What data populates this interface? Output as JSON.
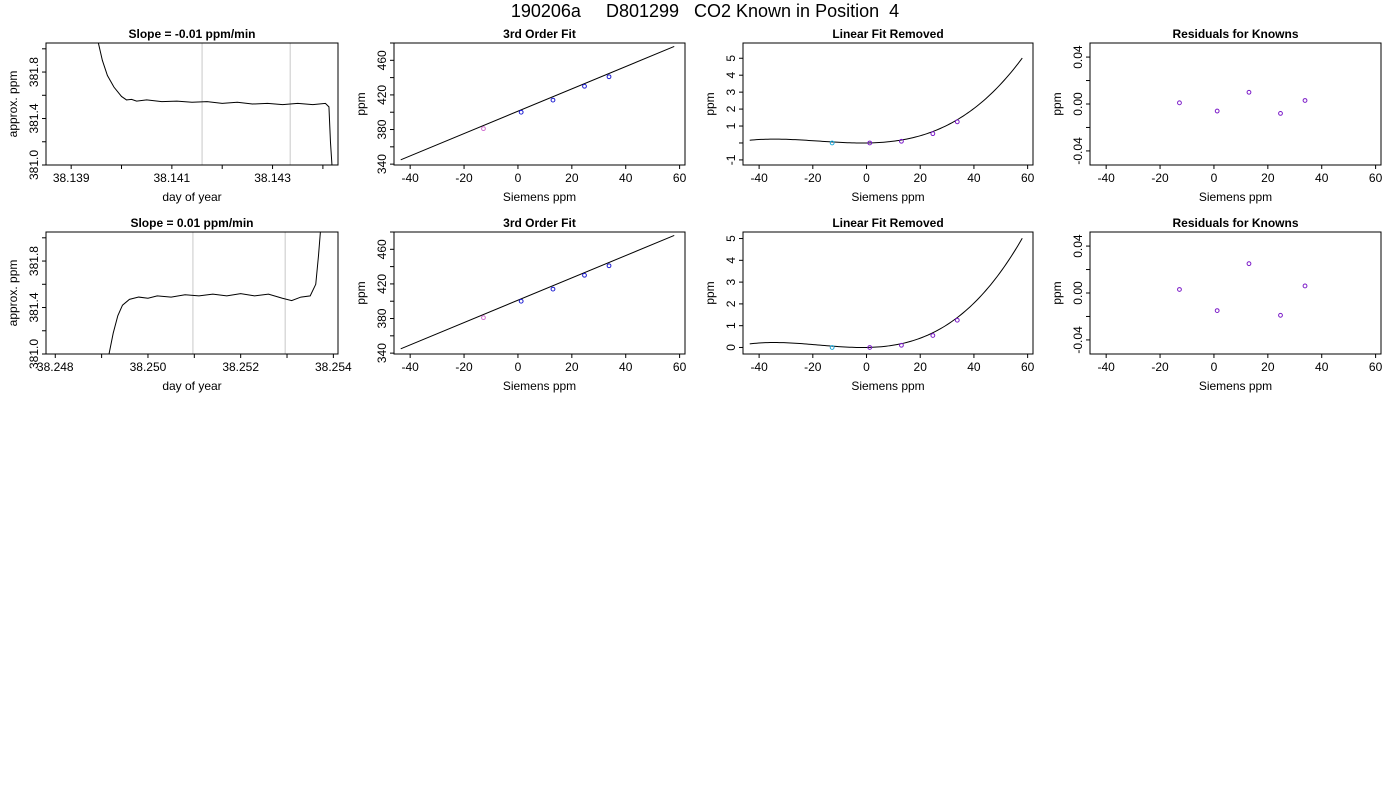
{
  "page": {
    "title": "190206a     D801299   CO2 Known in Position  4"
  },
  "chart_data": [
    {
      "id": "ts-row1",
      "type": "line",
      "title": "Slope =  -0.01  ppm/min",
      "xlabel": "day of year",
      "ylabel": "approx. ppm",
      "xlim": [
        38.1385,
        38.1443
      ],
      "ylim": [
        381.0,
        382.05
      ],
      "xticks": [
        38.139,
        38.14,
        38.141,
        38.142,
        38.143,
        38.144
      ],
      "xtick_labels": [
        "38.139",
        "",
        "38.141",
        "",
        "38.143",
        ""
      ],
      "yticks": [
        381.0,
        381.2,
        381.4,
        381.6,
        381.8,
        382.0
      ],
      "ytick_labels": [
        "381.0",
        "",
        "381.4",
        "",
        "381.8",
        ""
      ],
      "vlines": [
        38.1416,
        38.14335
      ],
      "series": [
        {
          "x": [
            38.13954,
            38.13962,
            38.13972,
            38.13985,
            38.14,
            38.1401,
            38.1402,
            38.1403,
            38.1405,
            38.1408,
            38.1411,
            38.1414,
            38.1417,
            38.142,
            38.1423,
            38.1426,
            38.1429,
            38.1432,
            38.1435,
            38.1438,
            38.14405,
            38.14412,
            38.14415,
            38.14418
          ],
          "y": [
            382.05,
            381.9,
            381.77,
            381.67,
            381.59,
            381.56,
            381.565,
            381.55,
            381.56,
            381.545,
            381.55,
            381.54,
            381.545,
            381.53,
            381.54,
            381.525,
            381.53,
            381.52,
            381.53,
            381.52,
            381.53,
            381.5,
            381.2,
            381.0
          ]
        }
      ]
    },
    {
      "id": "fit-row1",
      "type": "scatter",
      "title": "3rd Order Fit",
      "xlabel": "Siemens ppm",
      "ylabel": "ppm",
      "xlim": [
        -46,
        62
      ],
      "ylim": [
        339,
        480
      ],
      "xticks": [
        -40,
        -20,
        0,
        20,
        40,
        60
      ],
      "yticks": [
        340,
        360,
        380,
        400,
        420,
        440,
        460,
        480
      ],
      "ytick_labels": [
        "340",
        "",
        "380",
        "",
        "420",
        "",
        "460",
        ""
      ],
      "points": [
        {
          "x": -12.8,
          "y": 381
        },
        {
          "x": 1.2,
          "y": 400
        },
        {
          "x": 13.0,
          "y": 414
        },
        {
          "x": 24.7,
          "y": 430
        },
        {
          "x": 33.8,
          "y": 441
        }
      ],
      "point_colors": [
        "#d070d0",
        "#1a1ad0",
        "#1a1ad0",
        "#1a1ad0",
        "#1a1ad0"
      ],
      "curve": {
        "type": "linear",
        "x": [
          -43.5,
          58
        ],
        "y": [
          345,
          476
        ]
      }
    },
    {
      "id": "lin-row1",
      "type": "scatter",
      "title": "Linear Fit Removed",
      "xlabel": "Siemens ppm",
      "ylabel": "ppm",
      "xlim": [
        -46,
        62
      ],
      "ylim": [
        -1.3,
        5.9
      ],
      "xticks": [
        -40,
        -20,
        0,
        20,
        40,
        60
      ],
      "yticks": [
        -1,
        0,
        1,
        2,
        3,
        4,
        5
      ],
      "ytick_labels": [
        "-1",
        "",
        "1",
        "2",
        "3",
        "4",
        "5"
      ],
      "points": [
        {
          "x": -12.8,
          "y": 0.0
        },
        {
          "x": 1.2,
          "y": 0.0
        },
        {
          "x": 13.0,
          "y": 0.1
        },
        {
          "x": 24.7,
          "y": 0.55
        },
        {
          "x": 33.8,
          "y": 1.25
        }
      ],
      "point_colors": [
        "#18a6d8",
        "#7a18c8",
        "#7a18c8",
        "#7a18c8",
        "#7a18c8"
      ],
      "curve": {
        "type": "cubic",
        "coef": [
          0.0,
          0.0021,
          0.0007,
          1.3e-05
        ],
        "x_range": [
          -43.5,
          58
        ]
      }
    },
    {
      "id": "res-row1",
      "type": "scatter",
      "title": "Residuals for Knowns",
      "xlabel": "Siemens ppm",
      "ylabel": "ppm",
      "xlim": [
        -46,
        62
      ],
      "ylim": [
        -0.052,
        0.052
      ],
      "xticks": [
        -40,
        -20,
        0,
        20,
        40,
        60
      ],
      "yticks": [
        -0.04,
        -0.02,
        0.0,
        0.02,
        0.04
      ],
      "ytick_labels": [
        "-0.04",
        "",
        "0.00",
        "",
        "0.04"
      ],
      "points": [
        {
          "x": -12.8,
          "y": 0.001
        },
        {
          "x": 1.2,
          "y": -0.006
        },
        {
          "x": 13.0,
          "y": 0.01
        },
        {
          "x": 24.7,
          "y": -0.008
        },
        {
          "x": 33.8,
          "y": 0.003
        }
      ],
      "point_colors": [
        "#7a18c8",
        "#7a18c8",
        "#7a18c8",
        "#7a18c8",
        "#7a18c8"
      ]
    },
    {
      "id": "ts-row2",
      "type": "line",
      "title": "Slope =  0.01  ppm/min",
      "xlabel": "day of year",
      "ylabel": "approx. ppm",
      "xlim": [
        38.2478,
        38.2541
      ],
      "ylim": [
        381.0,
        382.05
      ],
      "xticks": [
        38.248,
        38.249,
        38.25,
        38.251,
        38.252,
        38.253,
        38.254
      ],
      "xtick_labels": [
        "38.248",
        "",
        "38.250",
        "",
        "38.252",
        "",
        "38.254"
      ],
      "yticks": [
        381.0,
        381.2,
        381.4,
        381.6,
        381.8,
        382.0
      ],
      "ytick_labels": [
        "381.0",
        "",
        "381.4",
        "",
        "381.8",
        ""
      ],
      "vlines": [
        38.25097,
        38.25296
      ],
      "series": [
        {
          "x": [
            38.24916,
            38.24925,
            38.24935,
            38.24945,
            38.2496,
            38.2498,
            38.25,
            38.2502,
            38.2505,
            38.2508,
            38.2511,
            38.2514,
            38.2517,
            38.252,
            38.2523,
            38.2526,
            38.2529,
            38.2531,
            38.2533,
            38.2535,
            38.25362,
            38.25368,
            38.25372
          ],
          "y": [
            381.0,
            381.18,
            381.33,
            381.42,
            381.47,
            381.49,
            381.48,
            381.5,
            381.49,
            381.51,
            381.5,
            381.515,
            381.5,
            381.52,
            381.5,
            381.515,
            381.48,
            381.46,
            381.49,
            381.5,
            381.6,
            381.85,
            382.05
          ]
        }
      ]
    },
    {
      "id": "fit-row2",
      "type": "scatter",
      "title": "3rd Order Fit",
      "xlabel": "Siemens ppm",
      "ylabel": "ppm",
      "xlim": [
        -46,
        62
      ],
      "ylim": [
        339,
        480
      ],
      "xticks": [
        -40,
        -20,
        0,
        20,
        40,
        60
      ],
      "yticks": [
        340,
        360,
        380,
        400,
        420,
        440,
        460,
        480
      ],
      "ytick_labels": [
        "340",
        "",
        "380",
        "",
        "420",
        "",
        "460",
        ""
      ],
      "points": [
        {
          "x": -12.8,
          "y": 381
        },
        {
          "x": 1.2,
          "y": 400
        },
        {
          "x": 13.0,
          "y": 414
        },
        {
          "x": 24.7,
          "y": 430
        },
        {
          "x": 33.8,
          "y": 441
        }
      ],
      "point_colors": [
        "#d070d0",
        "#1a1ad0",
        "#1a1ad0",
        "#1a1ad0",
        "#1a1ad0"
      ],
      "curve": {
        "type": "linear",
        "x": [
          -43.5,
          58
        ],
        "y": [
          345,
          476
        ]
      }
    },
    {
      "id": "lin-row2",
      "type": "scatter",
      "title": "Linear Fit Removed",
      "xlabel": "Siemens ppm",
      "ylabel": "ppm",
      "xlim": [
        -46,
        62
      ],
      "ylim": [
        -0.3,
        5.3
      ],
      "xticks": [
        -40,
        -20,
        0,
        20,
        40,
        60
      ],
      "yticks": [
        0,
        1,
        2,
        3,
        4,
        5
      ],
      "ytick_labels": [
        "0",
        "1",
        "2",
        "3",
        "4",
        "5"
      ],
      "points": [
        {
          "x": -12.8,
          "y": 0.0
        },
        {
          "x": 1.2,
          "y": 0.0
        },
        {
          "x": 13.0,
          "y": 0.1
        },
        {
          "x": 24.7,
          "y": 0.55
        },
        {
          "x": 33.8,
          "y": 1.25
        }
      ],
      "point_colors": [
        "#18a6d8",
        "#7a18c8",
        "#7a18c8",
        "#7a18c8",
        "#7a18c8"
      ],
      "curve": {
        "type": "cubic",
        "coef": [
          0.0,
          0.0021,
          0.0007,
          1.3e-05
        ],
        "x_range": [
          -43.5,
          58
        ]
      }
    },
    {
      "id": "res-row2",
      "type": "scatter",
      "title": "Residuals for Knowns",
      "xlabel": "Siemens ppm",
      "ylabel": "ppm",
      "xlim": [
        -46,
        62
      ],
      "ylim": [
        -0.052,
        0.052
      ],
      "xticks": [
        -40,
        -20,
        0,
        20,
        40,
        60
      ],
      "yticks": [
        -0.04,
        -0.02,
        0.0,
        0.02,
        0.04
      ],
      "ytick_labels": [
        "-0.04",
        "",
        "0.00",
        "",
        "0.04"
      ],
      "points": [
        {
          "x": -12.8,
          "y": 0.003
        },
        {
          "x": 1.2,
          "y": -0.015
        },
        {
          "x": 13.0,
          "y": 0.025
        },
        {
          "x": 24.7,
          "y": -0.019
        },
        {
          "x": 33.8,
          "y": 0.006
        }
      ],
      "point_colors": [
        "#7a18c8",
        "#7a18c8",
        "#7a18c8",
        "#7a18c8",
        "#7a18c8"
      ]
    }
  ]
}
